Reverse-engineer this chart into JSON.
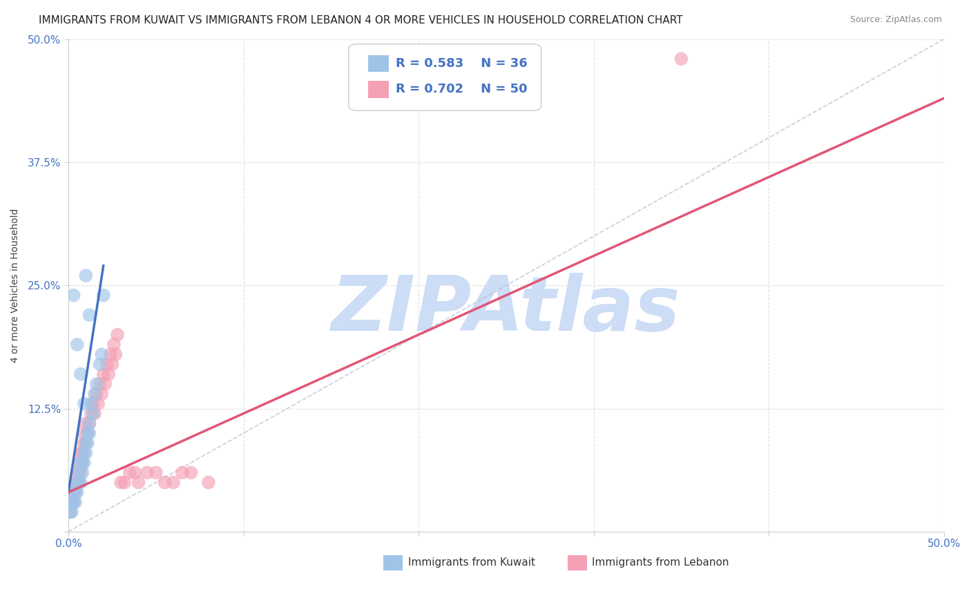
{
  "title": "IMMIGRANTS FROM KUWAIT VS IMMIGRANTS FROM LEBANON 4 OR MORE VEHICLES IN HOUSEHOLD CORRELATION CHART",
  "source": "Source: ZipAtlas.com",
  "ylabel": "4 or more Vehicles in Household",
  "xlim": [
    0.0,
    0.5
  ],
  "ylim": [
    0.0,
    0.5
  ],
  "xticks": [
    0.0,
    0.1,
    0.2,
    0.3,
    0.4,
    0.5
  ],
  "yticks": [
    0.0,
    0.125,
    0.25,
    0.375,
    0.5
  ],
  "xticklabels": [
    "0.0%",
    "",
    "",
    "",
    "",
    "50.0%"
  ],
  "yticklabels": [
    "",
    "12.5%",
    "25.0%",
    "37.5%",
    "50.0%"
  ],
  "kuwait_R": 0.583,
  "kuwait_N": 36,
  "lebanon_R": 0.702,
  "lebanon_N": 50,
  "kuwait_color": "#9ec4e8",
  "lebanon_color": "#f4a0b5",
  "kuwait_line_color": "#4472c4",
  "lebanon_line_color": "#e05575",
  "watermark": "ZIPAtlas",
  "watermark_color": "#ccddf5",
  "legend_label_kuwait": "Immigrants from Kuwait",
  "legend_label_lebanon": "Immigrants from Lebanon",
  "kuwait_x": [
    0.001,
    0.002,
    0.002,
    0.003,
    0.003,
    0.004,
    0.004,
    0.005,
    0.005,
    0.006,
    0.006,
    0.007,
    0.007,
    0.008,
    0.008,
    0.009,
    0.009,
    0.01,
    0.01,
    0.011,
    0.011,
    0.012,
    0.012,
    0.013,
    0.014,
    0.015,
    0.016,
    0.018,
    0.019,
    0.02,
    0.003,
    0.005,
    0.007,
    0.009,
    0.01,
    0.012
  ],
  "kuwait_y": [
    0.02,
    0.02,
    0.03,
    0.03,
    0.04,
    0.04,
    0.03,
    0.05,
    0.04,
    0.05,
    0.06,
    0.05,
    0.07,
    0.06,
    0.07,
    0.08,
    0.07,
    0.09,
    0.08,
    0.09,
    0.1,
    0.11,
    0.1,
    0.13,
    0.12,
    0.14,
    0.15,
    0.17,
    0.18,
    0.24,
    0.24,
    0.19,
    0.16,
    0.13,
    0.26,
    0.22
  ],
  "lebanon_x": [
    0.001,
    0.002,
    0.002,
    0.003,
    0.003,
    0.004,
    0.004,
    0.005,
    0.005,
    0.006,
    0.006,
    0.007,
    0.007,
    0.008,
    0.008,
    0.009,
    0.009,
    0.01,
    0.01,
    0.011,
    0.012,
    0.013,
    0.014,
    0.015,
    0.016,
    0.017,
    0.018,
    0.019,
    0.02,
    0.021,
    0.022,
    0.023,
    0.024,
    0.025,
    0.026,
    0.027,
    0.028,
    0.03,
    0.032,
    0.035,
    0.038,
    0.04,
    0.045,
    0.05,
    0.055,
    0.06,
    0.065,
    0.07,
    0.08,
    0.35
  ],
  "lebanon_y": [
    0.02,
    0.03,
    0.04,
    0.03,
    0.04,
    0.05,
    0.04,
    0.05,
    0.06,
    0.05,
    0.07,
    0.06,
    0.08,
    0.07,
    0.08,
    0.09,
    0.1,
    0.09,
    0.11,
    0.1,
    0.11,
    0.12,
    0.13,
    0.12,
    0.14,
    0.13,
    0.15,
    0.14,
    0.16,
    0.15,
    0.17,
    0.16,
    0.18,
    0.17,
    0.19,
    0.18,
    0.2,
    0.05,
    0.05,
    0.06,
    0.06,
    0.05,
    0.06,
    0.06,
    0.05,
    0.05,
    0.06,
    0.06,
    0.05,
    0.48
  ],
  "grid_color": "#d8d8d8",
  "title_fontsize": 11,
  "tick_label_color": "#4472c4"
}
